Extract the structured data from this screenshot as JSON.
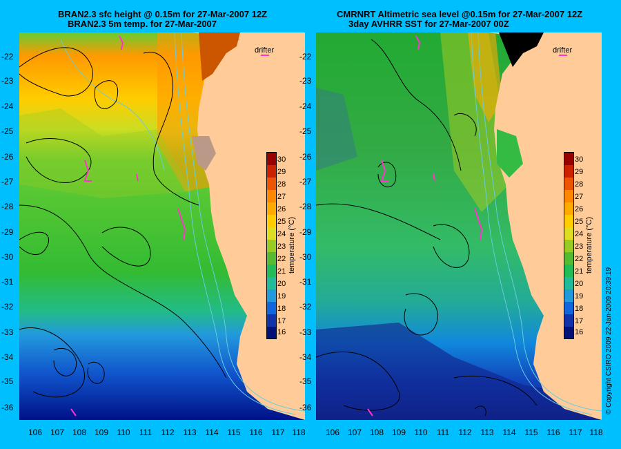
{
  "left_panel": {
    "title_line1": "BRAN2.3 sfc height @ 0.15m for 27-Mar-2007 12Z",
    "title_line2": "BRAN2.3 5m temp. for 27-Mar-2007",
    "drifter_label": "drifter",
    "colorbar_label": "temperature (°C)"
  },
  "right_panel": {
    "title_line1": "CMRNRT Altimetric sea level  @0.15m  for 27-Mar-2007 12Z",
    "title_line2": "3day AVHRR SST for 27-Mar-2007 00Z",
    "drifter_label": "drifter",
    "colorbar_label": "temperature (°C)"
  },
  "lat_ticks": [
    "-22",
    "-23",
    "-24",
    "-25",
    "-26",
    "-27",
    "-28",
    "-29",
    "-30",
    "-31",
    "-32",
    "-33",
    "-34",
    "-35",
    "-36"
  ],
  "lon_ticks": [
    "106",
    "107",
    "108",
    "109",
    "110",
    "111",
    "112",
    "113",
    "114",
    "115",
    "116",
    "117",
    "118"
  ],
  "colorbar_ticks": [
    "30",
    "29",
    "28",
    "27",
    "26",
    "25",
    "24",
    "23",
    "22",
    "21",
    "20",
    "19",
    "18",
    "17",
    "16"
  ],
  "copyright": "© Copyright CSIRO 2009   22-Jan-2009 20:39:19",
  "colors": {
    "background": "#00bfff",
    "land": "#ffcc99",
    "contour": "#000000",
    "bathymetry": "#66ccdd",
    "drifter": "#ff33cc"
  }
}
